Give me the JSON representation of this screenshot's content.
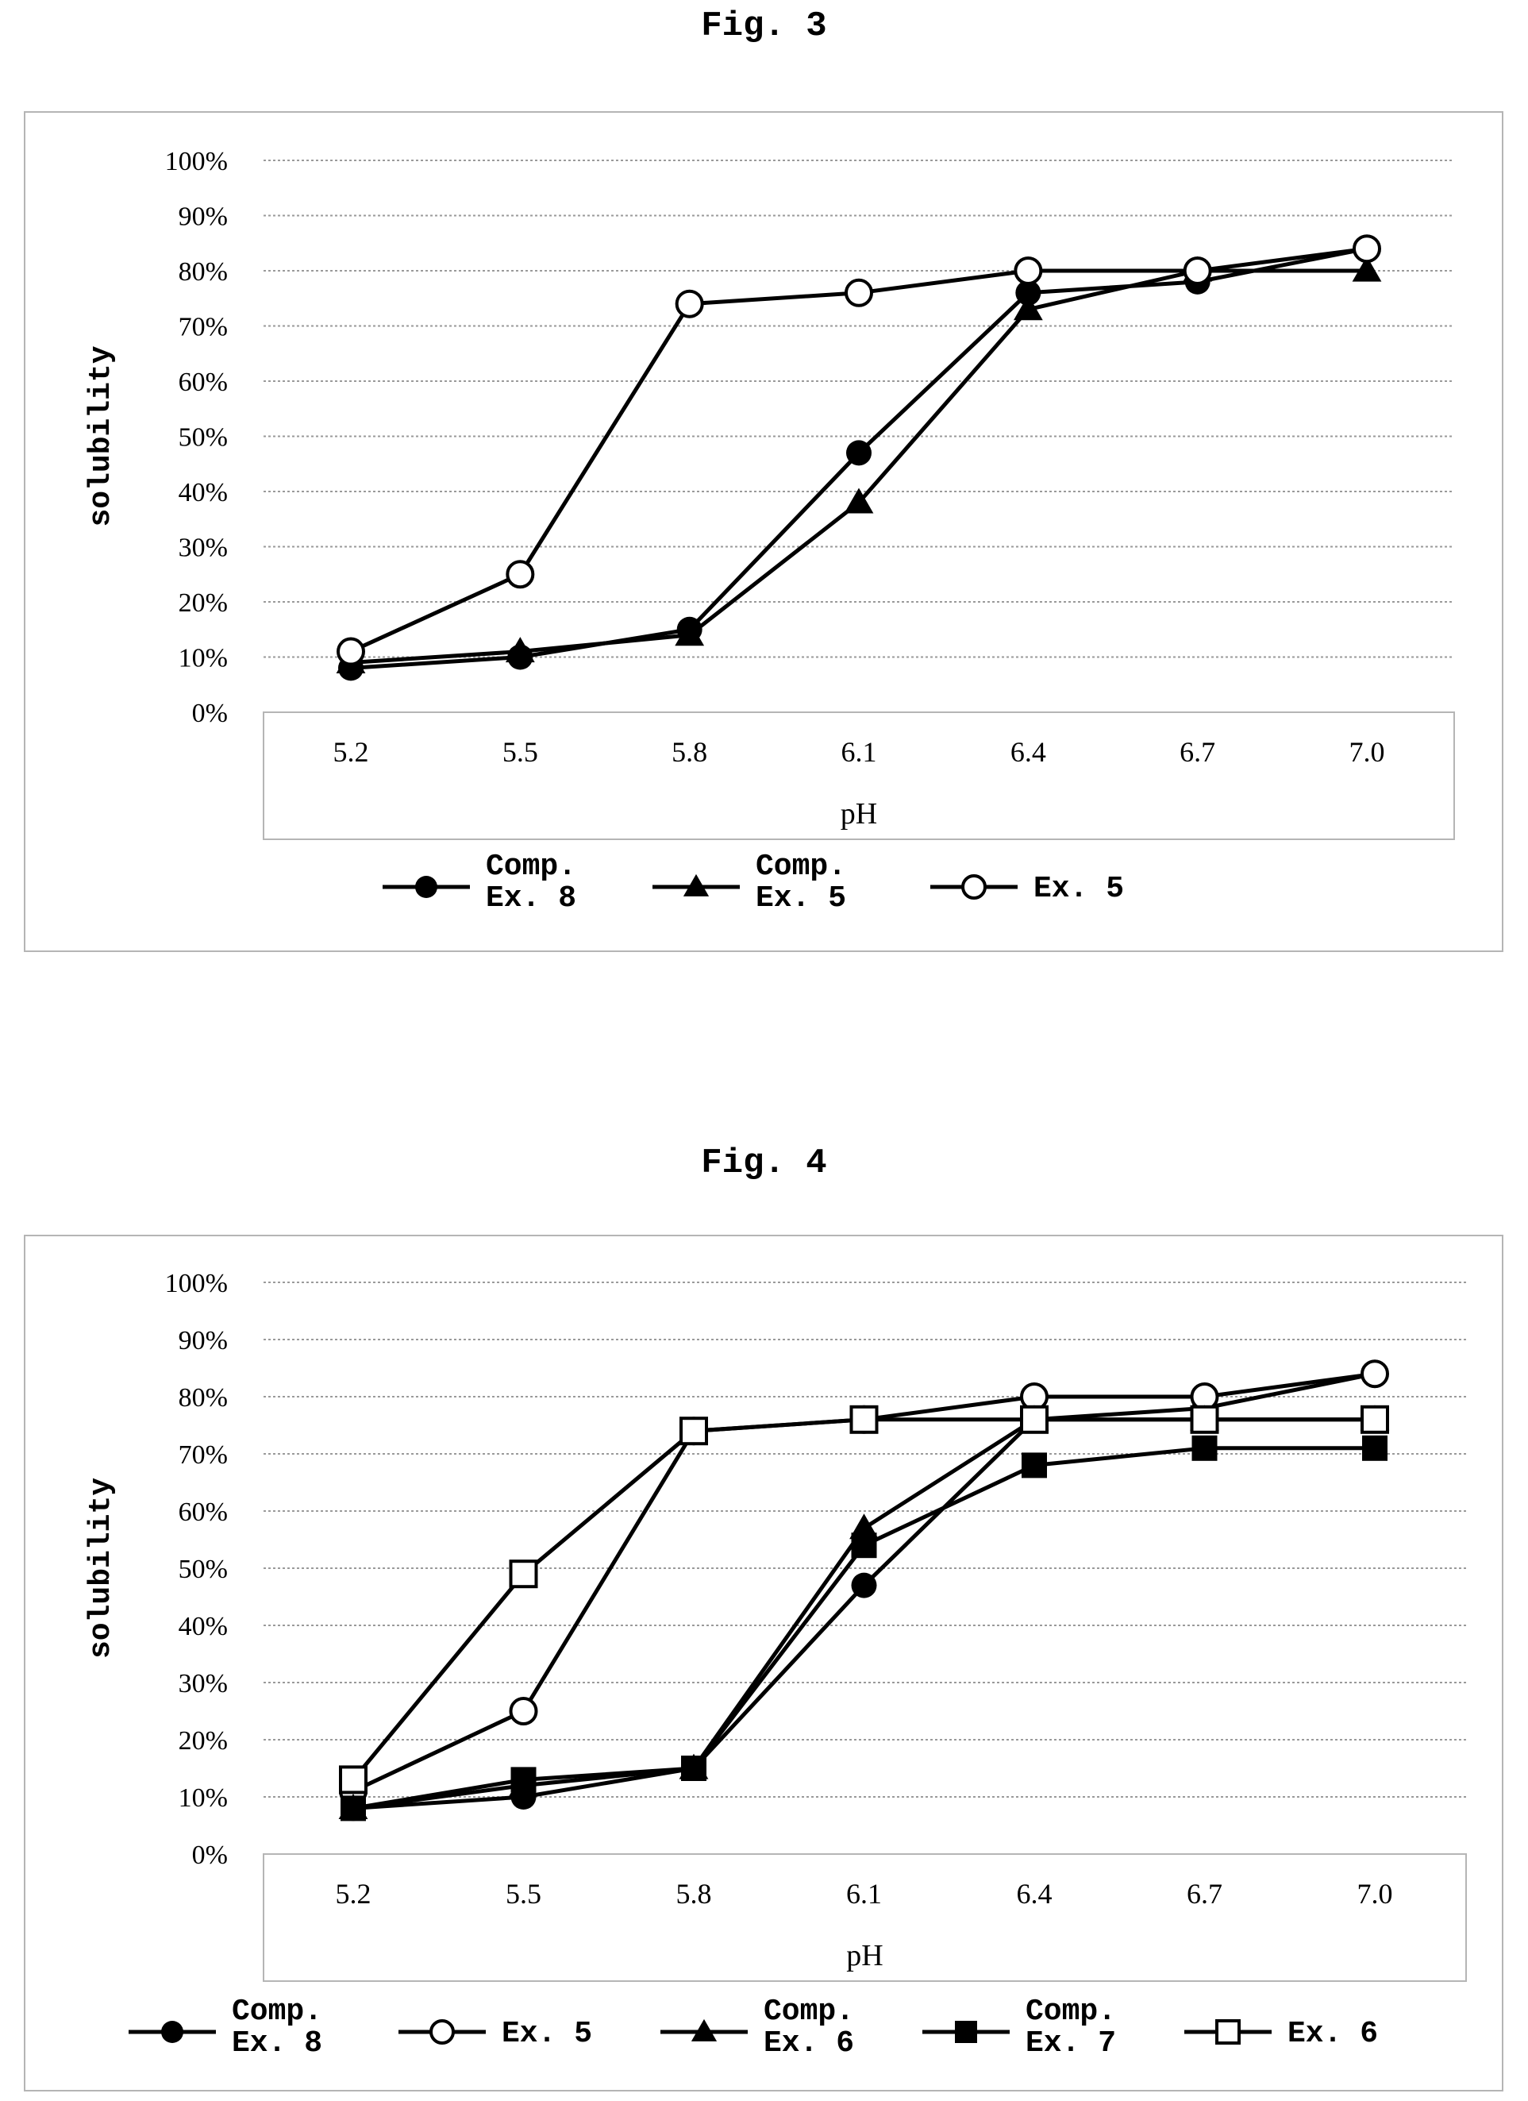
{
  "figures": [
    {
      "title": "Fig. 3",
      "chart_data": {
        "type": "line",
        "title": "",
        "xlabel": "pH",
        "ylabel": "solubility",
        "categories": [
          "5.2",
          "5.5",
          "5.8",
          "6.1",
          "6.4",
          "6.7",
          "7.0"
        ],
        "y_ticks": [
          "0%",
          "10%",
          "20%",
          "30%",
          "40%",
          "50%",
          "60%",
          "70%",
          "80%",
          "90%",
          "100%"
        ],
        "ylim": [
          0,
          100
        ],
        "grid": true,
        "legend_position": "bottom",
        "series": [
          {
            "name": "Comp. Ex. 8",
            "label_lines": [
              "Comp.",
              "Ex. 8"
            ],
            "marker": "filled-circle",
            "values": [
              8,
              10,
              15,
              47,
              76,
              78,
              84
            ]
          },
          {
            "name": "Comp. Ex. 5",
            "label_lines": [
              "Comp.",
              "Ex. 5"
            ],
            "marker": "filled-triangle",
            "values": [
              9,
              11,
              14,
              38,
              73,
              80,
              80
            ]
          },
          {
            "name": "Ex. 5",
            "label_lines": [
              "Ex. 5"
            ],
            "marker": "open-circle",
            "values": [
              11,
              25,
              74,
              76,
              80,
              80,
              84
            ]
          }
        ]
      }
    },
    {
      "title": "Fig. 4",
      "chart_data": {
        "type": "line",
        "title": "",
        "xlabel": "pH",
        "ylabel": "solubility",
        "categories": [
          "5.2",
          "5.5",
          "5.8",
          "6.1",
          "6.4",
          "6.7",
          "7.0"
        ],
        "y_ticks": [
          "0%",
          "10%",
          "20%",
          "30%",
          "40%",
          "50%",
          "60%",
          "70%",
          "80%",
          "90%",
          "100%"
        ],
        "ylim": [
          0,
          100
        ],
        "grid": true,
        "legend_position": "bottom",
        "series": [
          {
            "name": "Comp. Ex. 8",
            "label_lines": [
              "Comp.",
              "Ex. 8"
            ],
            "marker": "filled-circle",
            "values": [
              8,
              10,
              15,
              47,
              76,
              78,
              84
            ]
          },
          {
            "name": "Ex. 5",
            "label_lines": [
              "Ex. 5"
            ],
            "marker": "open-circle",
            "values": [
              11,
              25,
              74,
              76,
              80,
              80,
              84
            ]
          },
          {
            "name": "Comp. Ex. 6",
            "label_lines": [
              "Comp.",
              "Ex. 6"
            ],
            "marker": "filled-triangle",
            "values": [
              8,
              12,
              15,
              57,
              76,
              76,
              76
            ]
          },
          {
            "name": "Comp. Ex. 7",
            "label_lines": [
              "Comp.",
              "Ex. 7"
            ],
            "marker": "filled-square",
            "values": [
              8,
              13,
              15,
              54,
              68,
              71,
              71
            ]
          },
          {
            "name": "Ex. 6",
            "label_lines": [
              "Ex. 6"
            ],
            "marker": "open-square",
            "values": [
              13,
              49,
              74,
              76,
              76,
              76,
              76
            ]
          }
        ]
      }
    }
  ]
}
